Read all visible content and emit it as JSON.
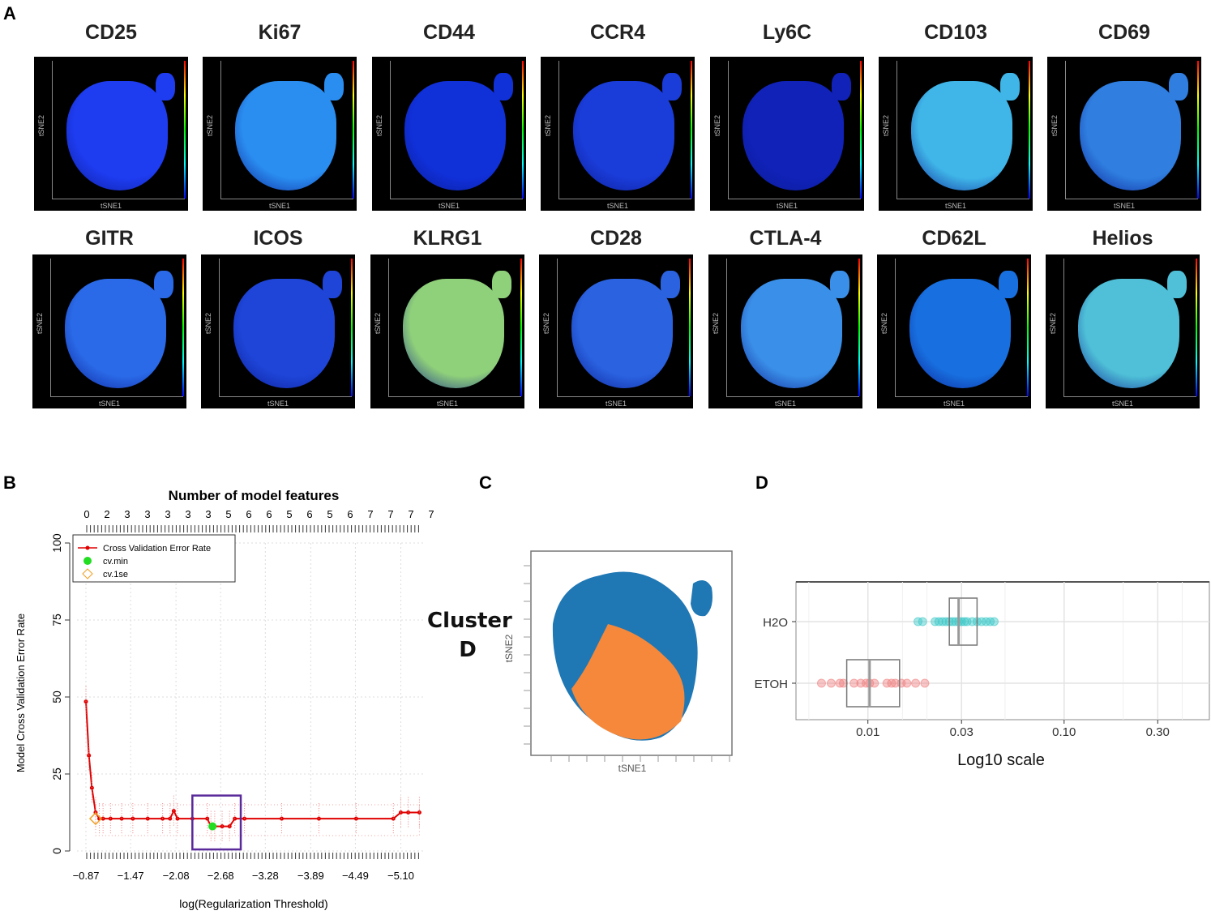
{
  "panels": {
    "a": "A",
    "b": "B",
    "c": "C",
    "d": "D"
  },
  "panel_a": {
    "x_axis_label": "tSNE1",
    "y_axis_label": "tSNE2",
    "markers": [
      {
        "name": "CD25",
        "color": "#1e3cf0"
      },
      {
        "name": "Ki67",
        "color": "#2a8df0"
      },
      {
        "name": "CD44",
        "color": "#1030d8"
      },
      {
        "name": "CCR4",
        "color": "#1a3cd8"
      },
      {
        "name": "Ly6C",
        "color": "#1022b8"
      },
      {
        "name": "CD103",
        "color": "#3fb5e8"
      },
      {
        "name": "CD69",
        "color": "#2f7ee0"
      },
      {
        "name": "GITR",
        "color": "#2a6ae8"
      },
      {
        "name": "ICOS",
        "color": "#1e45d8"
      },
      {
        "name": "KLRG1",
        "color": "#8fd07a"
      },
      {
        "name": "CD28",
        "color": "#2a62e0"
      },
      {
        "name": "CTLA-4",
        "color": "#3a8fe8"
      },
      {
        "name": "CD62L",
        "color": "#1870e0"
      },
      {
        "name": "Helios",
        "color": "#4fc0d8"
      }
    ]
  },
  "panel_c": {
    "label": "Cluster D",
    "label_line1": "Cluster",
    "label_line2": "D",
    "x_axis_label": "tSNE1",
    "y_axis_label": "tSNE2",
    "colors": {
      "other": "#1f77b4",
      "cluster": "#f5883a"
    }
  },
  "chart_data": [
    {
      "type": "line",
      "title": "Number of model features",
      "xlabel": "log(Regularization Threshold)",
      "ylabel": "Model Cross Validation Error Rate",
      "ylim": [
        0,
        100
      ],
      "yticks": [
        "0",
        "25",
        "50",
        "75",
        "100"
      ],
      "xticks": [
        "-0.87",
        "-1.47",
        "-2.08",
        "-2.68",
        "-3.28",
        "-3.89",
        "-4.49",
        "-5.10"
      ],
      "top_ticks": [
        "0",
        "2",
        "3",
        "3",
        "3",
        "3",
        "3",
        "5",
        "6",
        "6",
        "5",
        "6",
        "5",
        "6",
        "7",
        "7",
        "7",
        "7"
      ],
      "legend": [
        "Cross Validation Error Rate",
        "cv.min",
        "cv.1se"
      ],
      "colors": {
        "line": "#e00000",
        "cv_min": "#22dd22",
        "cv_1se": "#f0a020",
        "box": "#5a2a9a"
      },
      "series": [
        {
          "name": "Cross Validation Error Rate",
          "x": [
            -0.87,
            -0.91,
            -0.95,
            -1.0,
            -1.05,
            -1.1,
            -1.2,
            -1.35,
            -1.5,
            -1.7,
            -1.9,
            -2.0,
            -2.05,
            -2.1,
            -2.3,
            -2.5,
            -2.55,
            -2.6,
            -2.7,
            -2.8,
            -2.87,
            -3.0,
            -3.5,
            -4.0,
            -4.5,
            -5.0,
            -5.1,
            -5.2,
            -5.35
          ],
          "values": [
            48.5,
            31,
            20.5,
            12.5,
            10.5,
            10.5,
            10.5,
            10.5,
            10.5,
            10.5,
            10.5,
            10.5,
            13,
            10.5,
            10.5,
            10.5,
            8,
            8,
            8,
            8,
            10.5,
            10.5,
            10.5,
            10.5,
            10.5,
            10.5,
            12.5,
            12.5,
            12.5
          ]
        }
      ],
      "cv_min": {
        "x": -2.57,
        "y": 8
      },
      "cv_1se": {
        "x": -1.0,
        "y": 10.5
      }
    },
    {
      "type": "box",
      "xlabel": "Log10 scale",
      "categories": [
        "H2O",
        "ETOH"
      ],
      "xticks": [
        0.01,
        0.03,
        0.1,
        0.3
      ],
      "xtick_labels": [
        "0.01",
        "0.03",
        "0.10",
        "0.30"
      ],
      "xlim": [
        0.0043,
        0.55
      ],
      "colors": {
        "H2O": "#3cc8c8",
        "ETOH": "#f08080"
      },
      "series": [
        {
          "name": "H2O",
          "q1": 0.026,
          "median": 0.029,
          "q3": 0.036,
          "points": [
            0.018,
            0.019,
            0.022,
            0.023,
            0.024,
            0.025,
            0.026,
            0.027,
            0.028,
            0.029,
            0.03,
            0.031,
            0.032,
            0.034,
            0.036,
            0.038,
            0.04,
            0.042,
            0.044
          ]
        },
        {
          "name": "ETOH",
          "q1": 0.0078,
          "median": 0.0102,
          "q3": 0.0145,
          "points": [
            0.0058,
            0.0065,
            0.0072,
            0.0075,
            0.0085,
            0.0092,
            0.0098,
            0.0102,
            0.0108,
            0.0125,
            0.0132,
            0.0138,
            0.0148,
            0.0158,
            0.0175,
            0.0195
          ]
        }
      ]
    }
  ]
}
